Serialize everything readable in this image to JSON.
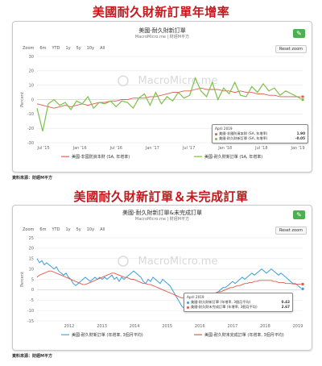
{
  "section1": {
    "heading": "美國耐久財新訂單年增率",
    "chart_title": "美國-耐久財新訂單",
    "chart_subtitle": "MacroMicro.me | 財經M平方",
    "watermark": "MacroMicro.me",
    "zoom_label": "Zoom",
    "zoom_options": [
      "6m",
      "YTD",
      "1y",
      "5y",
      "10y",
      "All"
    ],
    "reset_zoom": "Reset zoom",
    "tooltip": {
      "date": "April 2019",
      "rows": [
        {
          "label": "美國-非國防資本財 (SA, 年增率)",
          "value": "1.90",
          "color": "#e05a4a"
        },
        {
          "label": "美國-耐久財新訂單 (SA, 年增率)",
          "value": "-0.05",
          "color": "#7cc24a"
        }
      ]
    },
    "source": "資料來源：財經M平方",
    "chart_data": {
      "type": "line",
      "ylabel": "Percent",
      "ylim": [
        -30,
        30
      ],
      "yticks": [
        30,
        20,
        10,
        0,
        -10,
        -20,
        -30
      ],
      "xticks": [
        "Jul '15",
        "Jan '16",
        "Jul '16",
        "Jan '17",
        "Jul '17",
        "Jan '18",
        "Jul '18",
        "Jan '19"
      ],
      "x": [
        0,
        1,
        2,
        3,
        4,
        5,
        6,
        7,
        8,
        9,
        10,
        11,
        12,
        13,
        14,
        15,
        16,
        17,
        18,
        19,
        20,
        21,
        22,
        23,
        24,
        25,
        26,
        27,
        28,
        29,
        30,
        31,
        32,
        33,
        34,
        35,
        36,
        37,
        38,
        39,
        40,
        41,
        42,
        43,
        44,
        45,
        46,
        47
      ],
      "series": [
        {
          "name": "美國-非國防資本財 (SA, 年增率)",
          "color": "#e05a4a",
          "values": [
            -3,
            -4,
            -5,
            -6,
            -5,
            -4,
            -5,
            -4,
            -3,
            -4,
            -3,
            -2,
            -2,
            -1,
            -1,
            0,
            0,
            1,
            1,
            1,
            2,
            2,
            3,
            4,
            5,
            5,
            6,
            6,
            7,
            8,
            7,
            7,
            7,
            6,
            6,
            5,
            6,
            5,
            5,
            4,
            4,
            3,
            3,
            2,
            2,
            2,
            1.9,
            1.9
          ]
        },
        {
          "name": "美國-耐久財新訂單 (SA, 年增率)",
          "color": "#7cc24a",
          "values": [
            -6,
            -22,
            -3,
            0,
            -4,
            -2,
            -7,
            -1,
            -3,
            2,
            -6,
            -2,
            -3,
            -1,
            -5,
            -1,
            -2,
            -6,
            1,
            4,
            -4,
            5,
            -3,
            2,
            -1,
            5,
            1,
            3,
            15,
            6,
            2,
            12,
            0,
            8,
            4,
            12,
            3,
            2,
            9,
            5,
            11,
            6,
            8,
            3,
            6,
            4,
            2,
            -0.05
          ]
        }
      ]
    }
  },
  "section2": {
    "heading": "美國耐久財新訂單＆未完成訂單",
    "chart_title": "美國-耐久財新訂單&未完成訂單",
    "chart_subtitle": "MacroMicro.me | 財經M平方",
    "watermark": "MacroMicro.me",
    "zoom_label": "Zoom",
    "zoom_options": [
      "6m",
      "YTD",
      "1y",
      "5y",
      "10y",
      "All"
    ],
    "reset_zoom": "Reset zoom",
    "tooltip": {
      "date": "April 2019",
      "rows": [
        {
          "label": "美國-耐久財新訂單 (年增率, 3個月平均)",
          "value": "0.42",
          "color": "#3a9fd8"
        },
        {
          "label": "美國-耐久財未完成訂單 (年增率, 3個月平均)",
          "value": "2.67",
          "color": "#e05a4a"
        }
      ]
    },
    "source": "資料來源：財經M平方",
    "chart_data": {
      "type": "line",
      "ylabel": "Percent",
      "ylim": [
        -15,
        25
      ],
      "yticks": [
        25,
        20,
        15,
        10,
        5,
        0,
        -5,
        -10,
        -15
      ],
      "xticks": [
        "2012",
        "2013",
        "2014",
        "2015",
        "2016",
        "2017",
        "2018",
        "2019"
      ],
      "x": [
        0,
        1,
        2,
        3,
        4,
        5,
        6,
        7,
        8,
        9,
        10,
        11,
        12,
        13,
        14,
        15,
        16,
        17,
        18,
        19,
        20,
        21,
        22,
        23,
        24,
        25,
        26,
        27,
        28,
        29,
        30,
        31,
        32,
        33,
        34,
        35,
        36,
        37,
        38,
        39,
        40,
        41,
        42,
        43,
        44,
        45,
        46,
        47,
        48,
        49,
        50,
        51,
        52,
        53,
        54,
        55,
        56,
        57,
        58,
        59,
        60,
        61,
        62,
        63,
        64,
        65,
        66,
        67,
        68,
        69,
        70,
        71,
        72,
        73,
        74,
        75,
        76,
        77,
        78,
        79,
        80,
        81,
        82,
        83,
        84,
        85,
        86,
        87,
        88,
        89,
        90,
        91,
        92,
        93,
        94,
        95,
        96,
        97,
        98,
        99,
        100,
        101,
        102,
        103,
        104,
        105,
        106,
        107,
        108,
        109,
        110
      ],
      "series": [
        {
          "name": "美國-耐久財新訂單 (年增率, 3個月平均)",
          "color": "#3a9fd8",
          "values": [
            15,
            13,
            14,
            12,
            13,
            12,
            11,
            10,
            11,
            9,
            8,
            7,
            8,
            6,
            5,
            3,
            2,
            3,
            4,
            5,
            6,
            5,
            4,
            5,
            6,
            5,
            6,
            5,
            6,
            5,
            6,
            7,
            5,
            6,
            4,
            6,
            5,
            6,
            7,
            8,
            9,
            8,
            7,
            6,
            4,
            3,
            5,
            4,
            6,
            5,
            4,
            3,
            5,
            4,
            3,
            2,
            0,
            -2,
            -4,
            -6,
            -8,
            -9,
            -10,
            -10,
            -9,
            -8,
            -7,
            -8,
            -7,
            -6,
            -4,
            -3,
            -2,
            -3,
            -2,
            -1,
            0,
            1,
            1,
            2,
            3,
            4,
            3,
            4,
            5,
            6,
            5,
            6,
            7,
            8,
            7,
            8,
            9,
            10,
            9,
            8,
            9,
            10,
            9,
            8,
            7,
            8,
            7,
            6,
            5,
            4,
            3,
            3,
            2,
            1,
            0.42
          ]
        },
        {
          "name": "美國-耐久財未完成訂單 (年增率, 3個月平均)",
          "color": "#e05a4a",
          "values": [
            6,
            7,
            7.5,
            8,
            8.5,
            9,
            9,
            8.5,
            8,
            7.5,
            7,
            6.5,
            6,
            5.5,
            5,
            4.5,
            4,
            3.5,
            3,
            2.5,
            2.5,
            3,
            3.5,
            4,
            4.5,
            5,
            5.5,
            6,
            6.5,
            7,
            7.5,
            8,
            8,
            7.5,
            7,
            6.5,
            6,
            6,
            5.5,
            5,
            5,
            4.5,
            4,
            3.5,
            3,
            3,
            2.5,
            2.5,
            2,
            1.5,
            1,
            0.5,
            0,
            -0.5,
            -1,
            -1.5,
            -2,
            -2.5,
            -3,
            -3.5,
            -4,
            -4,
            -4.5,
            -4.5,
            -4.5,
            -4,
            -4,
            -3.5,
            -3.5,
            -3,
            -3,
            -2.5,
            -2,
            -2,
            -1.5,
            -1,
            -1,
            -0.5,
            0,
            0.5,
            1,
            1,
            1.5,
            2,
            2,
            2.5,
            3,
            3,
            3.5,
            3.5,
            4,
            4,
            4.5,
            4.5,
            4.5,
            4.5,
            4.5,
            4.5,
            4,
            4,
            3.5,
            3.5,
            3.5,
            3,
            3,
            3,
            2.8,
            2.7,
            2.7,
            2.7,
            2.67
          ]
        }
      ]
    }
  },
  "colors": {
    "accent": "#4caf50",
    "heading": "#c8161d"
  }
}
